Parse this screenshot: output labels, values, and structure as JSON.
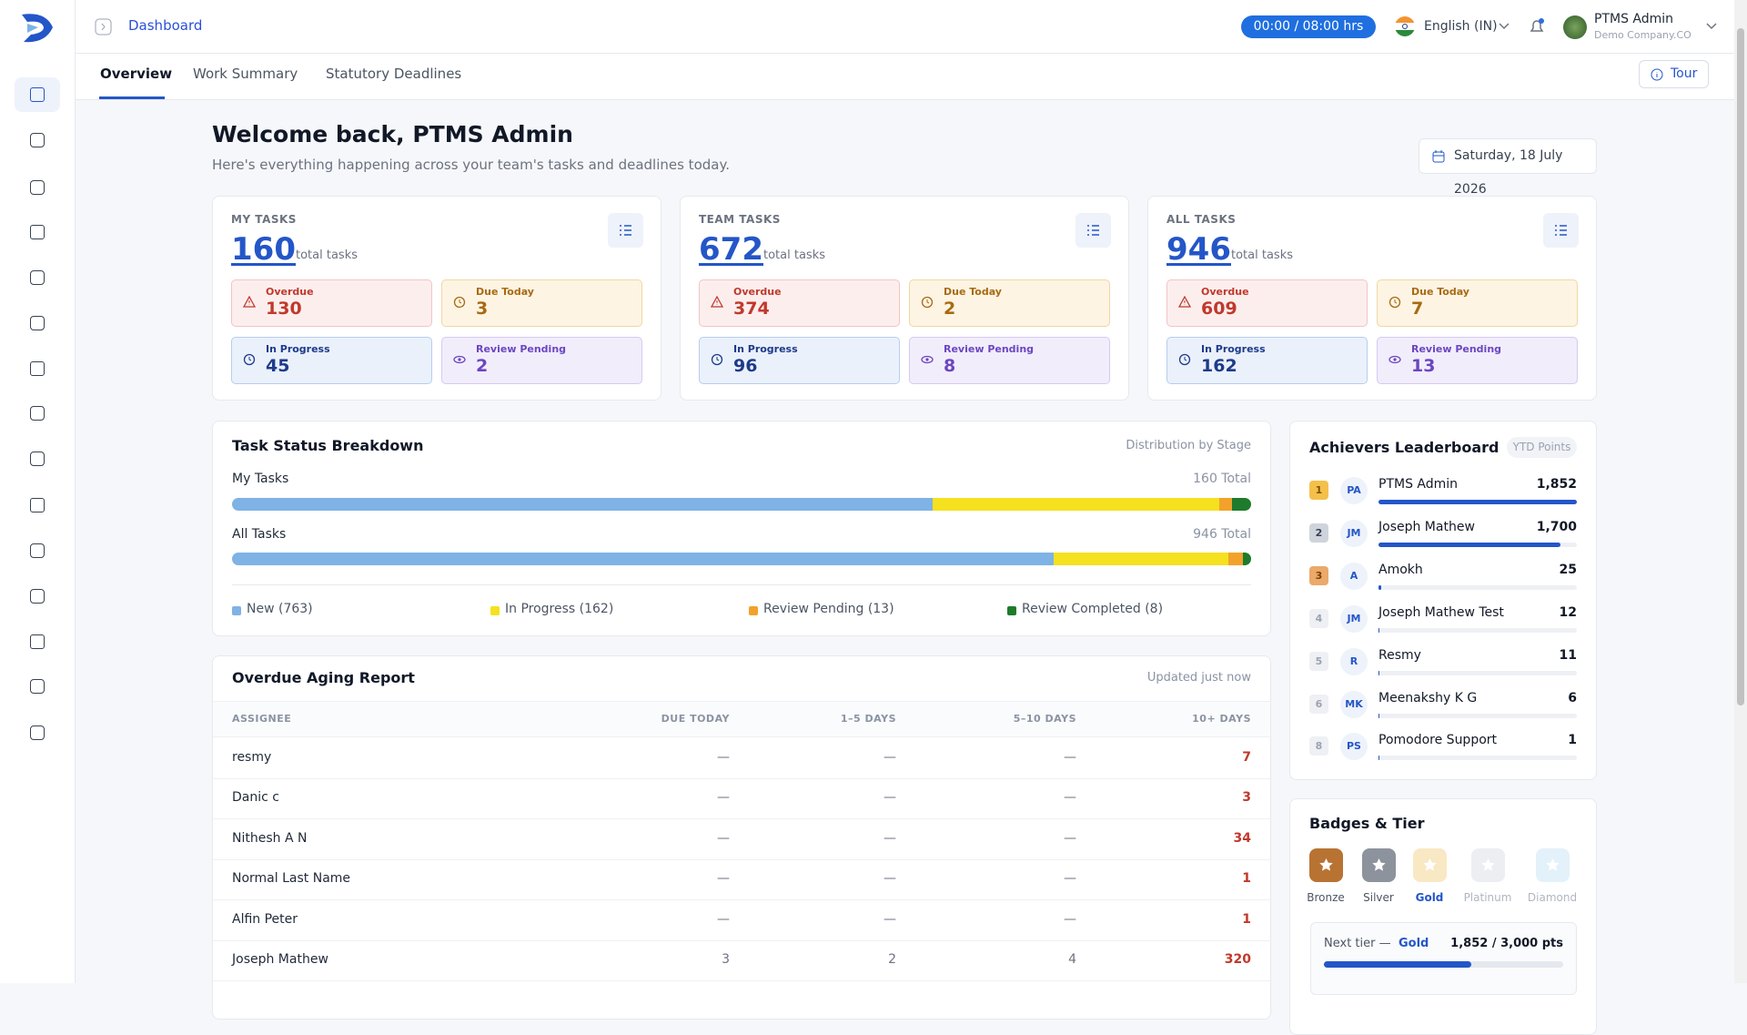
{
  "header": {
    "breadcrumb": "Dashboard",
    "timer": "00:00 / 08:00 hrs",
    "language": "English (IN)",
    "user_name": "PTMS Admin",
    "company": "Demo Company.CO"
  },
  "tabs": [
    "Overview",
    "Work Summary",
    "Statutory Deadlines"
  ],
  "tour": "Tour",
  "welcome": {
    "title": "Welcome back, PTMS Admin",
    "subtitle": "Here's everything happening across your team's tasks and deadlines today.",
    "date": "Saturday, 18 July 2026"
  },
  "task_cards": [
    {
      "label": "MY TASKS",
      "total": "160",
      "total_suffix": "total tasks",
      "stats": [
        {
          "label": "Overdue",
          "value": "130"
        },
        {
          "label": "Due Today",
          "value": "3"
        },
        {
          "label": "In Progress",
          "value": "45"
        },
        {
          "label": "Review Pending",
          "value": "2"
        }
      ]
    },
    {
      "label": "TEAM TASKS",
      "total": "672",
      "total_suffix": "total tasks",
      "stats": [
        {
          "label": "Overdue",
          "value": "374"
        },
        {
          "label": "Due Today",
          "value": "2"
        },
        {
          "label": "In Progress",
          "value": "96"
        },
        {
          "label": "Review Pending",
          "value": "8"
        }
      ]
    },
    {
      "label": "ALL TASKS",
      "total": "946",
      "total_suffix": "total tasks",
      "stats": [
        {
          "label": "Overdue",
          "value": "609"
        },
        {
          "label": "Due Today",
          "value": "7"
        },
        {
          "label": "In Progress",
          "value": "162"
        },
        {
          "label": "Review Pending",
          "value": "13"
        }
      ]
    }
  ],
  "breakdown": {
    "title": "Task Status Breakdown",
    "note": "Distribution by Stage",
    "rows": [
      {
        "label": "My Tasks",
        "total_label": "160 Total",
        "values": [
          110,
          45,
          2,
          3
        ]
      },
      {
        "label": "All Tasks",
        "total_label": "946 Total",
        "values": [
          763,
          162,
          13,
          8
        ]
      }
    ],
    "legend": [
      {
        "label": "New (763)",
        "color": "#7fb2e5"
      },
      {
        "label": "In Progress (162)",
        "color": "#f5e11f"
      },
      {
        "label": "Review Pending (13)",
        "color": "#f2a22b"
      },
      {
        "label": "Review Completed (8)",
        "color": "#1e7b2c"
      }
    ]
  },
  "aging": {
    "title": "Overdue Aging Report",
    "note": "Updated just now",
    "columns": [
      "ASSIGNEE",
      "DUE TODAY",
      "1–5 DAYS",
      "5–10 DAYS",
      "10+ DAYS"
    ],
    "rows": [
      [
        "resmy",
        "—",
        "—",
        "—",
        "7"
      ],
      [
        "Danic c",
        "—",
        "—",
        "—",
        "3"
      ],
      [
        "Nithesh A N",
        "—",
        "—",
        "—",
        "34"
      ],
      [
        "Normal Last Name",
        "—",
        "—",
        "—",
        "1"
      ],
      [
        "Alfin Peter",
        "—",
        "—",
        "—",
        "1"
      ],
      [
        "Joseph Mathew",
        "3",
        "2",
        "4",
        "320"
      ]
    ]
  },
  "leaderboard": {
    "title": "Achievers Leaderboard",
    "badge": "YTD Points",
    "entries": [
      {
        "rank": "1",
        "initials": "PA",
        "name": "PTMS Admin",
        "points": {
          "value": 1852,
          "label": "1,852"
        }
      },
      {
        "rank": "2",
        "initials": "JM",
        "name": "Joseph Mathew",
        "points": {
          "value": 1700,
          "label": "1,700"
        }
      },
      {
        "rank": "3",
        "initials": "A",
        "name": "Amokh",
        "points": 25
      },
      {
        "rank": "4",
        "initials": "JM",
        "name": "Joseph Mathew Test",
        "points": 12
      },
      {
        "rank": "5",
        "initials": "R",
        "name": "Resmy",
        "points": 11
      },
      {
        "rank": "6",
        "initials": "MK",
        "name": "Meenakshy K G",
        "points": 6
      },
      {
        "rank": "8",
        "initials": "PS",
        "name": "Pomodore Support",
        "points": 1
      }
    ]
  },
  "badges": {
    "title": "Badges & Tier",
    "tiers": [
      "Bronze",
      "Silver",
      "Gold",
      "Platinum",
      "Diamond"
    ],
    "next_tier_prefix": "Next tier —",
    "next_tier": "Gold",
    "progress": {
      "value": 1852,
      "max": 3000,
      "label": "1,852 / 3,000 pts"
    }
  }
}
